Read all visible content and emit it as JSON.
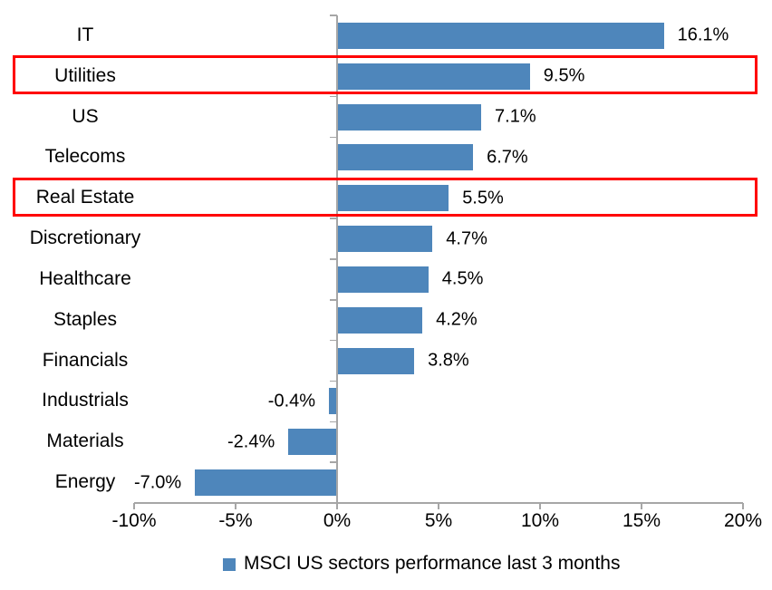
{
  "chart_data": {
    "type": "bar",
    "orientation": "horizontal",
    "title": "",
    "categories": [
      "IT",
      "Utilities",
      "US",
      "Telecoms",
      "Real Estate",
      "Discretionary",
      "Healthcare",
      "Staples",
      "Financials",
      "Industrials",
      "Materials",
      "Energy"
    ],
    "values": [
      16.1,
      9.5,
      7.1,
      6.7,
      5.5,
      4.7,
      4.5,
      4.2,
      3.8,
      -0.4,
      -2.4,
      -7.0
    ],
    "value_labels": [
      "16.1%",
      "9.5%",
      "7.1%",
      "6.7%",
      "5.5%",
      "4.7%",
      "4.5%",
      "4.2%",
      "3.8%",
      "-0.4%",
      "-2.4%",
      "-7.0%"
    ],
    "x_axis": {
      "range": [
        -10,
        20
      ],
      "ticks": [
        -10,
        -5,
        0,
        5,
        10,
        15,
        20
      ],
      "tick_labels": [
        "-10%",
        "-5%",
        "0%",
        "5%",
        "10%",
        "15%",
        "20%"
      ]
    },
    "grid": "off",
    "legend": {
      "position": "bottom",
      "label": "MSCI US sectors performance last 3 months"
    },
    "highlighted_categories": [
      "Utilities",
      "Real Estate"
    ],
    "colors": {
      "bar": "#4E86BB",
      "highlight_box": "#FF0000",
      "axis": "#A6A6A6",
      "text": "#000000",
      "background": "#FFFFFF"
    }
  }
}
